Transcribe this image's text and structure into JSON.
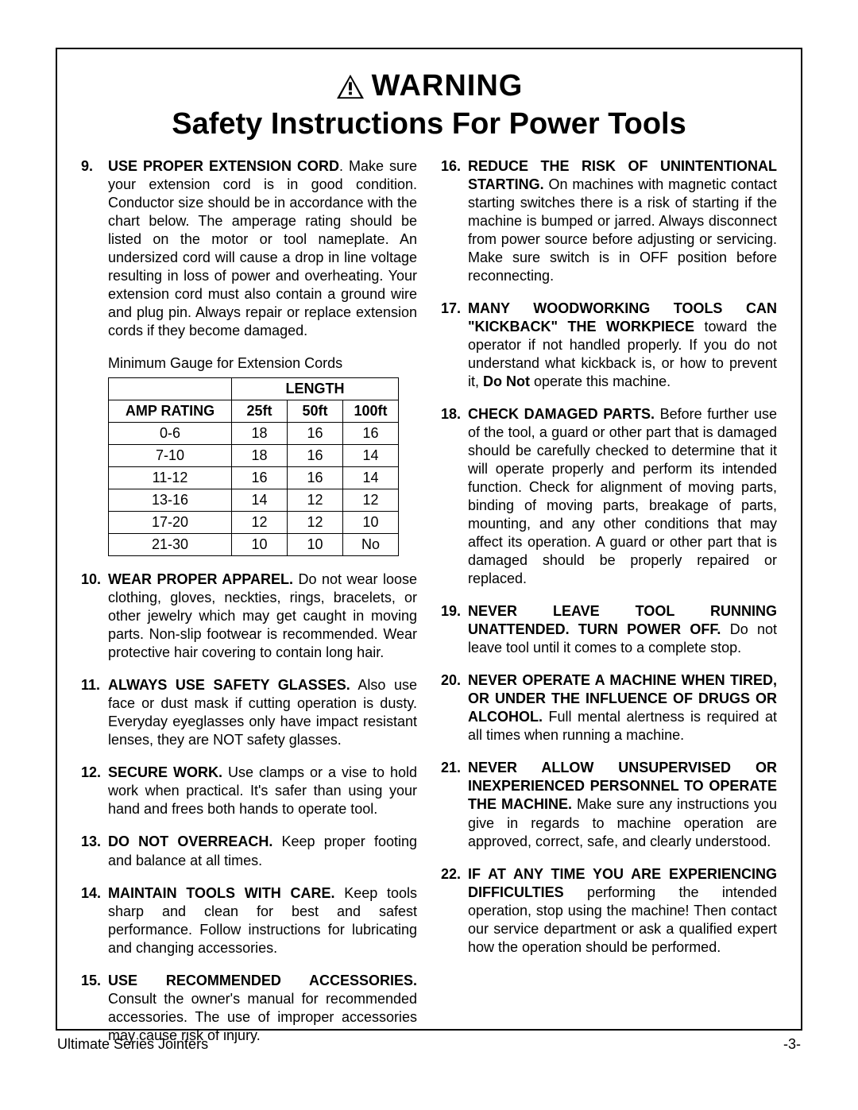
{
  "header": {
    "warning": "WARNING",
    "title": "Safety Instructions For Power Tools"
  },
  "table": {
    "caption": "Minimum Gauge for Extension Cords",
    "length_header": "LENGTH",
    "amp_header": "AMP RATING",
    "cols": [
      "25ft",
      "50ft",
      "100ft"
    ],
    "rows": [
      {
        "amp": "0-6",
        "v": [
          "18",
          "16",
          "16"
        ]
      },
      {
        "amp": "7-10",
        "v": [
          "18",
          "16",
          "14"
        ]
      },
      {
        "amp": "11-12",
        "v": [
          "16",
          "16",
          "14"
        ]
      },
      {
        "amp": "13-16",
        "v": [
          "14",
          "12",
          "12"
        ]
      },
      {
        "amp": "17-20",
        "v": [
          "12",
          "12",
          "10"
        ]
      },
      {
        "amp": "21-30",
        "v": [
          "10",
          "10",
          "No"
        ]
      }
    ]
  },
  "left_items": [
    {
      "num": "9.",
      "lead": "USE PROPER EXTENSION CORD",
      "body": ". Make sure your extension cord is in good condition. Conductor size should be in accordance with the chart below. The amperage rating should be listed on the motor or tool nameplate. An undersized cord will cause a drop in line voltage resulting in loss of power and overheating. Your extension cord must also contain a ground wire and plug pin. Always repair or replace extension cords if they become damaged."
    },
    {
      "num": "10.",
      "lead": "WEAR PROPER APPAREL.",
      "body": " Do not wear loose clothing, gloves, neckties, rings, bracelets, or other jewelry which may get caught in moving parts. Non-slip footwear is recommended. Wear protective hair covering to contain long hair."
    },
    {
      "num": "11.",
      "lead": "ALWAYS USE SAFETY GLASSES.",
      "body": " Also use face or dust mask if cutting operation is dusty. Everyday eyeglasses only have impact resistant lenses, they are NOT safety glasses."
    },
    {
      "num": "12.",
      "lead": "SECURE WORK.",
      "body": " Use clamps or a vise to hold work when practical. It's safer than using your hand and frees both hands to operate tool."
    },
    {
      "num": "13.",
      "lead": "DO NOT OVERREACH.",
      "body": " Keep proper footing and balance at all times."
    },
    {
      "num": "14.",
      "lead": "MAINTAIN TOOLS WITH CARE.",
      "body": " Keep tools sharp and clean for best and safest performance. Follow instructions for lubricating and changing accessories."
    },
    {
      "num": "15.",
      "lead": "USE RECOMMENDED ACCESSORIES.",
      "body": " Consult the owner's manual for recommended accessories. The use of improper accessories may cause risk of injury."
    }
  ],
  "right_items": [
    {
      "num": "16.",
      "lead": "REDUCE THE RISK OF UNINTENTIONAL STARTING.",
      "body": " On machines with magnetic contact starting switches there is a risk of starting if the machine is bumped or jarred. Always disconnect from power source before adjusting or servicing. Make sure switch is in OFF position before reconnecting."
    },
    {
      "num": "17.",
      "lead": "MANY WOODWORKING TOOLS CAN \"KICKBACK\" THE WORKPIECE",
      "body": " toward the operator if not handled properly. If you do not understand what kickback is, or how to prevent it, ",
      "extra_bold": "Do Not",
      "extra_body": " operate this machine."
    },
    {
      "num": "18.",
      "lead": "CHECK DAMAGED PARTS.",
      "body": " Before further use of the tool, a guard or other part that is damaged should be carefully checked to determine that it will operate properly and perform its intended function. Check for alignment of moving parts, binding of moving parts, breakage of parts, mounting, and any other conditions that may affect its operation. A guard or other part that is damaged should be properly repaired or replaced."
    },
    {
      "num": "19.",
      "lead": "NEVER LEAVE TOOL RUNNING UNATTENDED. TURN POWER OFF.",
      "body": " Do not leave tool until it comes to a complete stop."
    },
    {
      "num": "20.",
      "lead": "NEVER OPERATE A MACHINE WHEN TIRED, OR UNDER THE INFLUENCE OF DRUGS OR ALCOHOL.",
      "body": " Full mental alertness is required at all times when running a machine."
    },
    {
      "num": "21.",
      "lead": "NEVER ALLOW UNSUPERVISED OR INEXPERIENCED PERSONNEL TO OPERATE THE MACHINE.",
      "body": " Make sure any instructions you give in regards to machine operation are approved, correct, safe, and clearly understood."
    },
    {
      "num": "22.",
      "lead": "IF AT ANY TIME YOU ARE EXPERIENCING DIFFICULTIES",
      "body": " performing the intended operation, stop using the machine! Then contact our service department or ask a qualified expert how the operation should be performed."
    }
  ],
  "footer": {
    "left": "Ultimate Series Jointers",
    "right": "-3-"
  }
}
